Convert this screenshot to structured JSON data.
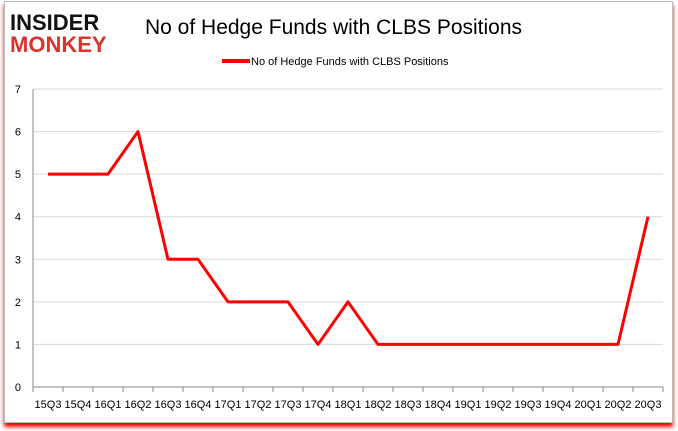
{
  "logo": {
    "line1": "INSIDER",
    "line2": "MONKEY"
  },
  "chart_data": {
    "type": "line",
    "title": "No of Hedge Funds with CLBS Positions",
    "legend": {
      "position": "top",
      "entries": [
        "No of Hedge Funds with CLBS Positions"
      ]
    },
    "categories": [
      "15Q3",
      "15Q4",
      "16Q1",
      "16Q2",
      "16Q3",
      "16Q4",
      "17Q1",
      "17Q2",
      "17Q3",
      "17Q4",
      "18Q1",
      "18Q2",
      "18Q3",
      "18Q4",
      "19Q1",
      "19Q2",
      "19Q3",
      "19Q4",
      "20Q1",
      "20Q2",
      "20Q3"
    ],
    "series": [
      {
        "name": "No of Hedge Funds with CLBS Positions",
        "color": "#ff0000",
        "values": [
          5,
          5,
          5,
          6,
          3,
          3,
          2,
          2,
          2,
          1,
          2,
          1,
          1,
          1,
          1,
          1,
          1,
          1,
          1,
          1,
          4
        ]
      }
    ],
    "ylim": [
      0,
      7
    ],
    "yticks": [
      0,
      1,
      2,
      3,
      4,
      5,
      6,
      7
    ],
    "grid": true,
    "colors": {
      "line": "#ff0000",
      "grid": "#d9d9d9",
      "logo_top": "#111111",
      "logo_bottom": "#d9342b"
    }
  }
}
